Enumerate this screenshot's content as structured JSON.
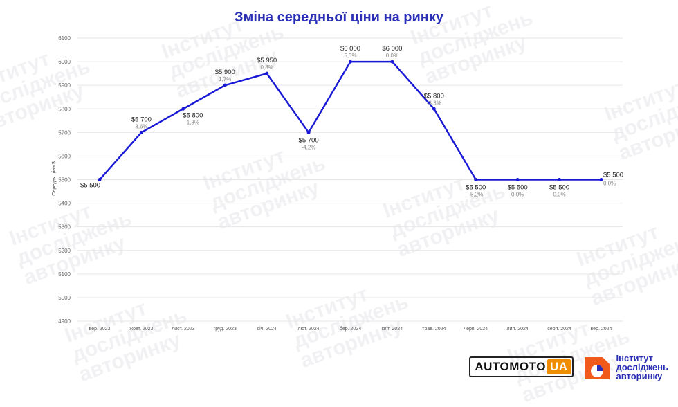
{
  "watermark": {
    "lines": [
      "Інститут",
      "досліджень",
      "авторинку"
    ]
  },
  "chart_data": {
    "type": "line",
    "title": "Зміна середньої ціни на ринку",
    "ylabel": "Середня ціна $",
    "xlabel": "",
    "ylim": [
      4900,
      6100
    ],
    "yticks": [
      4900,
      5000,
      5100,
      5200,
      5300,
      5400,
      5500,
      5600,
      5700,
      5800,
      5900,
      6000,
      6100
    ],
    "grid": true,
    "categories": [
      "вер. 2023",
      "жовт. 2023",
      "лист. 2023",
      "груд. 2023",
      "січ. 2024",
      "лют. 2024",
      "бер. 2024",
      "квіт. 2024",
      "трав. 2024",
      "черв. 2024",
      "лип. 2024",
      "серп. 2024",
      "вер. 2024"
    ],
    "values": [
      5500,
      5700,
      5800,
      5900,
      5950,
      5700,
      6000,
      6000,
      5800,
      5500,
      5500,
      5500,
      5500
    ],
    "value_labels": [
      "$5 500",
      "$5 700",
      "$5 800",
      "$5 900",
      "$5 950",
      "$5 700",
      "$6 000",
      "$6 000",
      "$5 800",
      "$5 500",
      "$5 500",
      "$5 500",
      "$5 500"
    ],
    "pct_labels": [
      "",
      "3,6%",
      "1,8%",
      "1,7%",
      "0,8%",
      "-4,2%",
      "5,3%",
      "0,0%",
      "-3,3%",
      "-5,2%",
      "0,0%",
      "0,0%",
      "0,0%"
    ],
    "line_color": "#1a1ad6"
  },
  "logos": {
    "automoto_main": "AUTOMOTO",
    "automoto_ua": "UA",
    "institute": [
      "Інститут",
      "досліджень",
      "авторинку"
    ]
  }
}
